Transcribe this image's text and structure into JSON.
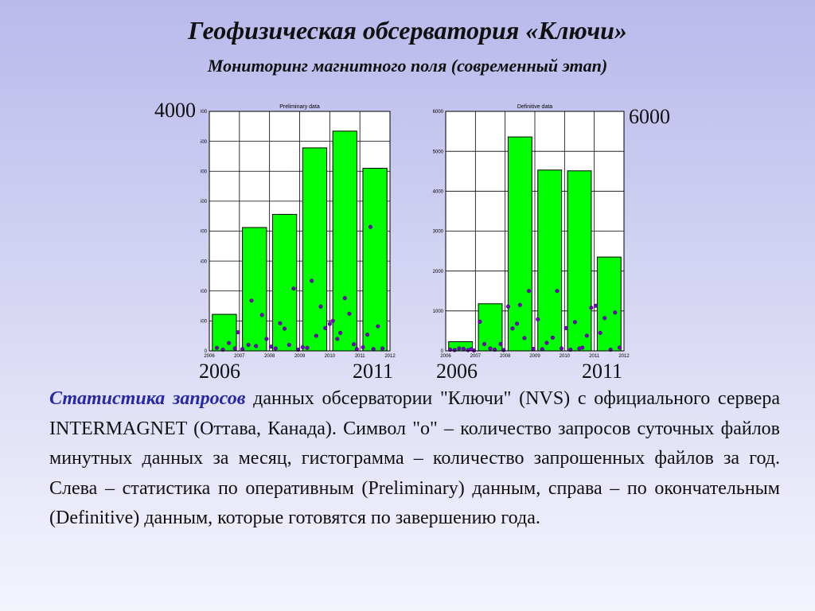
{
  "title": "Геофизическая обсерватория «Ключи»",
  "subtitle": "Мониторинг магнитного поля (современный этап)",
  "labels": {
    "left_ymax": "4000",
    "right_ymax": "6000",
    "left_x_start": "2006",
    "left_x_end": "2011",
    "right_x_start": "2006",
    "right_x_end": "2011"
  },
  "description": {
    "lead": "Статистика запросов",
    "text": " данных обсерватории \"Ключи\" (NVS) с официального сервера INTERMAGNET (Оттава, Канада). Символ \"o\" – количество запросов суточных файлов минутных данных за месяц, гистограмма – количество запрошенных файлов за год. Слева – статистика по оперативным (Preliminary) данным, справа – по окончательным (Definitive) данным, которые готовятся по завершению года."
  },
  "colors": {
    "bar": "#00ff00",
    "marker": "#7b00c8",
    "lead_text": "#2727a8"
  },
  "chart_data": [
    {
      "type": "bar",
      "title": "Preliminary data",
      "categories": [
        "2006",
        "2007",
        "2008",
        "2009",
        "2010",
        "2011"
      ],
      "values": [
        610,
        2060,
        2280,
        3390,
        3670,
        3050
      ],
      "xlim": [
        2006,
        2012
      ],
      "xticks": [
        "2006",
        "2007",
        "2008",
        "2009",
        "2010",
        "2011",
        "2012"
      ],
      "ylim": [
        0,
        4000
      ],
      "yticks": [
        "0",
        "500",
        "1000",
        "1500",
        "2000",
        "2500",
        "3000",
        "3500",
        "4000"
      ],
      "grid": true,
      "markers": {
        "name": "o",
        "x": [
          2006.25,
          2006.45,
          2006.65,
          2006.85,
          2006.95,
          2007.1,
          2007.3,
          2007.4,
          2007.55,
          2007.75,
          2007.9,
          2008.05,
          2008.2,
          2008.35,
          2008.5,
          2008.65,
          2008.8,
          2008.95,
          2009.1,
          2009.25,
          2009.4,
          2009.55,
          2009.7,
          2009.85,
          2010.0,
          2010.1,
          2010.25,
          2010.35,
          2010.5,
          2010.65,
          2010.8,
          2010.9,
          2011.1,
          2011.25,
          2011.35,
          2011.45,
          2011.6,
          2011.75
        ],
        "y": [
          50,
          20,
          130,
          40,
          310,
          30,
          100,
          840,
          80,
          600,
          200,
          70,
          40,
          460,
          370,
          100,
          1040,
          20,
          60,
          50,
          1170,
          250,
          740,
          380,
          450,
          500,
          200,
          300,
          880,
          620,
          110,
          30,
          60,
          270,
          2070,
          30,
          410,
          40
        ]
      }
    },
    {
      "type": "bar",
      "title": "Definitive data",
      "categories": [
        "2006",
        "2007",
        "2008",
        "2009",
        "2010",
        "2011"
      ],
      "values": [
        230,
        1180,
        5360,
        4530,
        4510,
        2350
      ],
      "xlim": [
        2006,
        2012
      ],
      "xticks": [
        "2006",
        "2007",
        "2008",
        "2009",
        "2010",
        "2011",
        "2012"
      ],
      "ylim": [
        0,
        6000
      ],
      "yticks": [
        "0",
        "1000",
        "2000",
        "3000",
        "4000",
        "5000",
        "6000"
      ],
      "grid": true,
      "markers": {
        "name": "o",
        "x": [
          2006.15,
          2006.3,
          2006.45,
          2006.6,
          2006.75,
          2006.85,
          2006.95,
          2007.15,
          2007.3,
          2007.5,
          2007.65,
          2007.85,
          2007.95,
          2008.1,
          2008.25,
          2008.4,
          2008.5,
          2008.65,
          2008.8,
          2008.95,
          2009.1,
          2009.25,
          2009.4,
          2009.6,
          2009.75,
          2009.9,
          2010.05,
          2010.2,
          2010.35,
          2010.5,
          2010.6,
          2010.75,
          2010.9,
          2011.05,
          2011.2,
          2011.35,
          2011.55,
          2011.7,
          2011.85
        ],
        "y": [
          30,
          20,
          60,
          50,
          20,
          40,
          10,
          730,
          170,
          60,
          30,
          170,
          20,
          1110,
          560,
          680,
          1150,
          320,
          1500,
          50,
          790,
          40,
          200,
          330,
          1500,
          60,
          570,
          30,
          720,
          60,
          80,
          380,
          1080,
          1130,
          450,
          820,
          30,
          960,
          80
        ]
      }
    }
  ]
}
